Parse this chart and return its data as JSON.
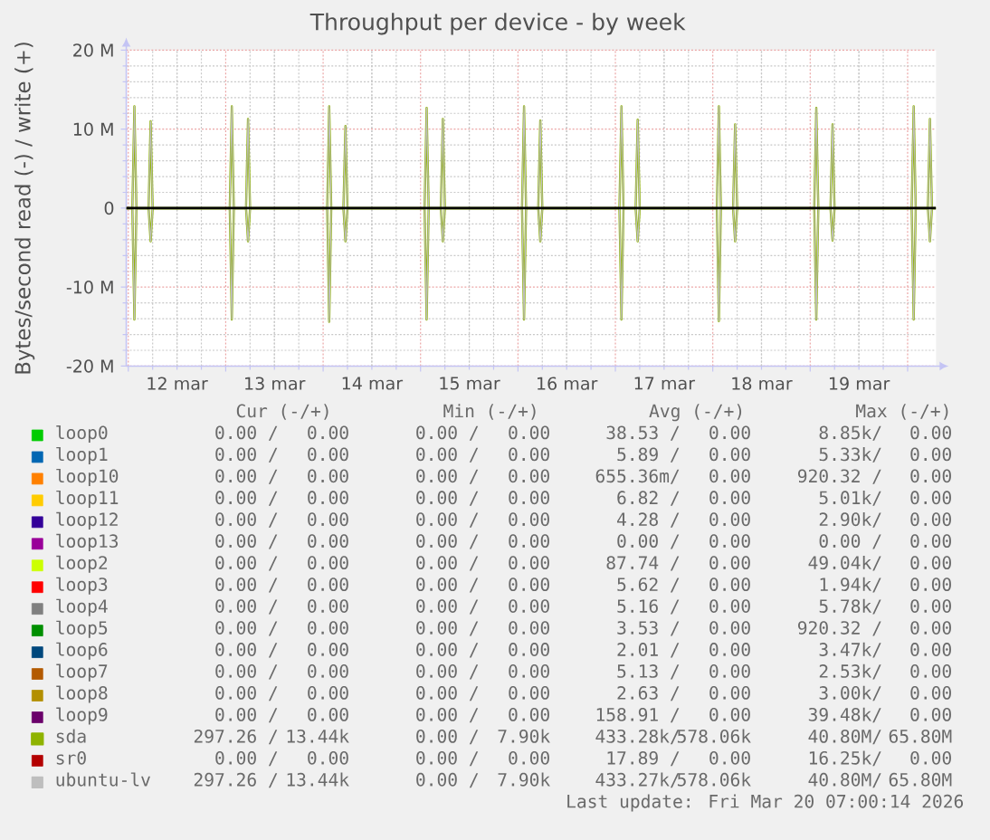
{
  "chart_data": {
    "type": "line",
    "title": "Throughput per device - by week",
    "ylabel": "Bytes/second read (-) / write (+)",
    "xlim": [
      "2026-03-11T23:30",
      "2026-03-20T07:00"
    ],
    "xticks": [
      {
        "value": "2026-03-12T00:00",
        "label": null
      },
      {
        "value": "2026-03-12T12:00",
        "label": "12 mar"
      },
      {
        "value": "2026-03-13T00:00",
        "label": null
      },
      {
        "value": "2026-03-13T12:00",
        "label": "13 mar"
      },
      {
        "value": "2026-03-14T00:00",
        "label": null
      },
      {
        "value": "2026-03-14T12:00",
        "label": "14 mar"
      },
      {
        "value": "2026-03-15T00:00",
        "label": null
      },
      {
        "value": "2026-03-15T12:00",
        "label": "15 mar"
      },
      {
        "value": "2026-03-16T00:00",
        "label": null
      },
      {
        "value": "2026-03-16T12:00",
        "label": "16 mar"
      },
      {
        "value": "2026-03-17T00:00",
        "label": null
      },
      {
        "value": "2026-03-17T12:00",
        "label": "17 mar"
      },
      {
        "value": "2026-03-18T00:00",
        "label": null
      },
      {
        "value": "2026-03-18T12:00",
        "label": "18 mar"
      },
      {
        "value": "2026-03-19T00:00",
        "label": null
      },
      {
        "value": "2026-03-19T12:00",
        "label": "19 mar"
      },
      {
        "value": "2026-03-20T00:00",
        "label": null
      }
    ],
    "ylim": [
      -20,
      20
    ],
    "yticks": [
      {
        "value": -20,
        "label": "-20 M"
      },
      {
        "value": -10,
        "label": "-10 M"
      },
      0,
      {
        "value": 10,
        "label": "10 M"
      },
      {
        "value": 20,
        "label": "20 M"
      }
    ],
    "grid": true,
    "legend": "bottom",
    "series": [
      {
        "name": "loop0",
        "color": "#00cc00",
        "values": [
          null
        ]
      },
      {
        "name": "loop1",
        "color": "#0066b3",
        "values": [
          null
        ]
      },
      {
        "name": "loop10",
        "color": "#ff8000",
        "values": [
          null
        ]
      },
      {
        "name": "loop11",
        "color": "#ffcc00",
        "values": [
          null
        ]
      },
      {
        "name": "loop12",
        "color": "#330099",
        "values": [
          null
        ]
      },
      {
        "name": "loop13",
        "color": "#990099",
        "values": [
          null
        ]
      },
      {
        "name": "loop2",
        "color": "#ccff00",
        "values": [
          null
        ]
      },
      {
        "name": "loop3",
        "color": "#ff0000",
        "values": [
          null
        ]
      },
      {
        "name": "loop4",
        "color": "#808080",
        "values": [
          null
        ]
      },
      {
        "name": "loop5",
        "color": "#008f00",
        "values": [
          null
        ]
      },
      {
        "name": "loop6",
        "color": "#00487d",
        "values": [
          null
        ]
      },
      {
        "name": "loop7",
        "color": "#b35a00",
        "values": [
          null
        ]
      },
      {
        "name": "loop8",
        "color": "#b38f00",
        "values": [
          null
        ]
      },
      {
        "name": "loop9",
        "color": "#6b006b",
        "values": [
          null
        ]
      },
      {
        "name": "sda",
        "color": "#8fb300",
        "x": [
          "2026-03-11T23:30",
          "2026-03-12T01:00",
          "2026-03-12T01:30",
          "2026-03-12T02:00",
          "2026-03-12T05:00",
          "2026-03-12T05:30",
          "2026-03-12T06:00",
          "2026-03-13T01:00",
          "2026-03-13T01:30",
          "2026-03-13T02:00",
          "2026-03-13T05:00",
          "2026-03-13T05:30",
          "2026-03-13T06:00",
          "2026-03-14T01:00",
          "2026-03-14T01:30",
          "2026-03-14T02:00",
          "2026-03-14T05:00",
          "2026-03-14T05:30",
          "2026-03-14T06:00",
          "2026-03-15T01:00",
          "2026-03-15T01:30",
          "2026-03-15T02:00",
          "2026-03-15T05:00",
          "2026-03-15T05:30",
          "2026-03-15T06:00",
          "2026-03-16T01:00",
          "2026-03-16T01:30",
          "2026-03-16T02:00",
          "2026-03-16T05:00",
          "2026-03-16T05:30",
          "2026-03-16T06:00",
          "2026-03-17T01:00",
          "2026-03-17T01:30",
          "2026-03-17T02:00",
          "2026-03-17T05:00",
          "2026-03-17T05:30",
          "2026-03-17T06:00",
          "2026-03-18T01:00",
          "2026-03-18T01:30",
          "2026-03-18T02:00",
          "2026-03-18T05:00",
          "2026-03-18T05:30",
          "2026-03-18T06:00",
          "2026-03-19T01:00",
          "2026-03-19T01:30",
          "2026-03-19T02:00",
          "2026-03-19T05:00",
          "2026-03-19T05:30",
          "2026-03-19T06:00",
          "2026-03-20T01:00",
          "2026-03-20T01:30",
          "2026-03-20T02:00",
          "2026-03-20T05:00",
          "2026-03-20T05:30",
          "2026-03-20T06:00",
          "2026-03-20T07:00"
        ],
        "values": [
          0,
          0,
          12.9,
          0,
          0,
          11.0,
          0,
          0,
          12.9,
          0,
          0,
          11.3,
          0,
          0,
          12.9,
          0,
          0,
          10.4,
          0,
          0,
          12.7,
          0,
          0,
          11.3,
          0,
          0,
          12.9,
          0,
          0,
          11.1,
          0,
          0,
          12.9,
          0,
          0,
          11.2,
          0,
          0,
          12.9,
          0,
          0,
          10.6,
          0,
          0,
          12.7,
          0,
          0,
          10.6,
          0,
          0,
          12.9,
          0,
          0,
          11.3,
          0,
          0
        ]
      },
      {
        "color": "#8fb300",
        "x": [
          "2026-03-11T23:30",
          "2026-03-12T01:00",
          "2026-03-12T01:30",
          "2026-03-12T02:00",
          "2026-03-12T05:00",
          "2026-03-12T05:30",
          "2026-03-12T06:00",
          "2026-03-13T01:00",
          "2026-03-13T01:30",
          "2026-03-13T02:00",
          "2026-03-13T05:00",
          "2026-03-13T05:30",
          "2026-03-13T06:00",
          "2026-03-14T01:00",
          "2026-03-14T01:30",
          "2026-03-14T02:00",
          "2026-03-14T05:00",
          "2026-03-14T05:30",
          "2026-03-14T06:00",
          "2026-03-15T01:00",
          "2026-03-15T01:30",
          "2026-03-15T02:00",
          "2026-03-15T05:00",
          "2026-03-15T05:30",
          "2026-03-15T06:00",
          "2026-03-16T01:00",
          "2026-03-16T01:30",
          "2026-03-16T02:00",
          "2026-03-16T05:00",
          "2026-03-16T05:30",
          "2026-03-16T06:00",
          "2026-03-17T01:00",
          "2026-03-17T01:30",
          "2026-03-17T02:00",
          "2026-03-17T05:00",
          "2026-03-17T05:30",
          "2026-03-17T06:00",
          "2026-03-18T01:00",
          "2026-03-18T01:30",
          "2026-03-18T02:00",
          "2026-03-18T05:00",
          "2026-03-18T05:30",
          "2026-03-18T06:00",
          "2026-03-19T01:00",
          "2026-03-19T01:30",
          "2026-03-19T02:00",
          "2026-03-19T05:00",
          "2026-03-19T05:30",
          "2026-03-19T06:00",
          "2026-03-20T01:00",
          "2026-03-20T01:30",
          "2026-03-20T02:00",
          "2026-03-20T05:00",
          "2026-03-20T05:30",
          "2026-03-20T06:00",
          "2026-03-20T07:00"
        ],
        "values": [
          0,
          0,
          -14.1,
          0,
          0,
          -4.2,
          0,
          0,
          -14.1,
          0,
          0,
          -4.2,
          0,
          0,
          -14.4,
          0,
          0,
          -4.2,
          0,
          0,
          -14.1,
          0,
          0,
          -4.2,
          0,
          0,
          -14.1,
          0,
          0,
          -4.2,
          0,
          0,
          -14.1,
          0,
          0,
          -4.2,
          0,
          0,
          -14.3,
          0,
          0,
          -4.2,
          0,
          0,
          -14.1,
          0,
          0,
          -4.1,
          0,
          0,
          -14.1,
          0,
          0,
          -4.2,
          0,
          0
        ]
      },
      {
        "name": "sr0",
        "color": "#b30000",
        "values": [
          null
        ]
      },
      {
        "name": "ubuntu-lv",
        "color": "#bebebe",
        "x": [
          "2026-03-11T23:30",
          "2026-03-12T01:00",
          "2026-03-12T01:30",
          "2026-03-12T02:00",
          "2026-03-12T05:00",
          "2026-03-12T05:30",
          "2026-03-12T06:00",
          "2026-03-13T01:00",
          "2026-03-13T01:30",
          "2026-03-13T02:00",
          "2026-03-13T05:00",
          "2026-03-13T05:30",
          "2026-03-13T06:00",
          "2026-03-14T01:00",
          "2026-03-14T01:30",
          "2026-03-14T02:00",
          "2026-03-14T05:00",
          "2026-03-14T05:30",
          "2026-03-14T06:00",
          "2026-03-15T01:00",
          "2026-03-15T01:30",
          "2026-03-15T02:00",
          "2026-03-15T05:00",
          "2026-03-15T05:30",
          "2026-03-15T06:00",
          "2026-03-16T01:00",
          "2026-03-16T01:30",
          "2026-03-16T02:00",
          "2026-03-16T05:00",
          "2026-03-16T05:30",
          "2026-03-16T06:00",
          "2026-03-17T01:00",
          "2026-03-17T01:30",
          "2026-03-17T02:00",
          "2026-03-17T05:00",
          "2026-03-17T05:30",
          "2026-03-17T06:00",
          "2026-03-18T01:00",
          "2026-03-18T01:30",
          "2026-03-18T02:00",
          "2026-03-18T05:00",
          "2026-03-18T05:30",
          "2026-03-18T06:00",
          "2026-03-19T01:00",
          "2026-03-19T01:30",
          "2026-03-19T02:00",
          "2026-03-19T05:00",
          "2026-03-19T05:30",
          "2026-03-19T06:00",
          "2026-03-20T01:00",
          "2026-03-20T01:30",
          "2026-03-20T02:00",
          "2026-03-20T05:00",
          "2026-03-20T05:30",
          "2026-03-20T06:00",
          "2026-03-20T07:00"
        ],
        "values": [
          0,
          0,
          12.9,
          0,
          0,
          11.0,
          0,
          0,
          12.9,
          0,
          0,
          11.3,
          0,
          0,
          12.9,
          0,
          0,
          10.4,
          0,
          0,
          12.7,
          0,
          0,
          11.3,
          0,
          0,
          12.9,
          0,
          0,
          11.1,
          0,
          0,
          12.9,
          0,
          0,
          11.2,
          0,
          0,
          12.9,
          0,
          0,
          10.6,
          0,
          0,
          12.7,
          0,
          0,
          10.6,
          0,
          0,
          12.9,
          0,
          0,
          11.3,
          0,
          0
        ]
      },
      {
        "color": "#bebebe",
        "x": [
          "2026-03-11T23:30",
          "2026-03-12T01:00",
          "2026-03-12T01:30",
          "2026-03-12T02:00",
          "2026-03-12T05:00",
          "2026-03-12T05:30",
          "2026-03-12T06:00",
          "2026-03-13T01:00",
          "2026-03-13T01:30",
          "2026-03-13T02:00",
          "2026-03-13T05:00",
          "2026-03-13T05:30",
          "2026-03-13T06:00",
          "2026-03-14T01:00",
          "2026-03-14T01:30",
          "2026-03-14T02:00",
          "2026-03-14T05:00",
          "2026-03-14T05:30",
          "2026-03-14T06:00",
          "2026-03-15T01:00",
          "2026-03-15T01:30",
          "2026-03-15T02:00",
          "2026-03-15T05:00",
          "2026-03-15T05:30",
          "2026-03-15T06:00",
          "2026-03-16T01:00",
          "2026-03-16T01:30",
          "2026-03-16T02:00",
          "2026-03-16T05:00",
          "2026-03-16T05:30",
          "2026-03-16T06:00",
          "2026-03-17T01:00",
          "2026-03-17T01:30",
          "2026-03-17T02:00",
          "2026-03-17T05:00",
          "2026-03-17T05:30",
          "2026-03-17T06:00",
          "2026-03-18T01:00",
          "2026-03-18T01:30",
          "2026-03-18T02:00",
          "2026-03-18T05:00",
          "2026-03-18T05:30",
          "2026-03-18T06:00",
          "2026-03-19T01:00",
          "2026-03-19T01:30",
          "2026-03-19T02:00",
          "2026-03-19T05:00",
          "2026-03-19T05:30",
          "2026-03-19T06:00",
          "2026-03-20T01:00",
          "2026-03-20T01:30",
          "2026-03-20T02:00",
          "2026-03-20T05:00",
          "2026-03-20T05:30",
          "2026-03-20T06:00",
          "2026-03-20T07:00"
        ],
        "values": [
          0,
          0,
          -14.1,
          0,
          0,
          -4.2,
          0,
          0,
          -14.1,
          0,
          0,
          -4.2,
          0,
          0,
          -14.4,
          0,
          0,
          -4.2,
          0,
          0,
          -14.1,
          0,
          0,
          -4.2,
          0,
          0,
          -14.1,
          0,
          0,
          -4.2,
          0,
          0,
          -14.1,
          0,
          0,
          -4.2,
          0,
          0,
          -14.3,
          0,
          0,
          -4.2,
          0,
          0,
          -14.1,
          0,
          0,
          -4.1,
          0,
          0,
          -14.1,
          0,
          0,
          -4.2,
          0,
          0
        ]
      }
    ],
    "ref_lines": [
      {
        "axis": "y",
        "value": 0,
        "color": "#000000"
      }
    ],
    "annotations": [
      "Cur (-/+)",
      "Min (-/+)",
      "Avg (-/+)",
      "Max (-/+)",
      "0.00 /",
      "0.00",
      "0.00 /",
      "0.00",
      "38.53 /",
      "0.00",
      "8.85k/",
      "0.00",
      "0.00 /",
      "0.00",
      "0.00 /",
      "0.00",
      "5.89 /",
      "0.00",
      "5.33k/",
      "0.00",
      "0.00 /",
      "0.00",
      "0.00 /",
      "0.00",
      "655.36m/",
      "0.00",
      "920.32 /",
      "0.00",
      "0.00 /",
      "0.00",
      "0.00 /",
      "0.00",
      "6.82 /",
      "0.00",
      "5.01k/",
      "0.00",
      "0.00 /",
      "0.00",
      "0.00 /",
      "0.00",
      "4.28 /",
      "0.00",
      "2.90k/",
      "0.00",
      "0.00 /",
      "0.00",
      "0.00 /",
      "0.00",
      "0.00 /",
      "0.00",
      "0.00 /",
      "0.00",
      "0.00 /",
      "0.00",
      "0.00 /",
      "0.00",
      "87.74 /",
      "0.00",
      "49.04k/",
      "0.00",
      "0.00 /",
      "0.00",
      "0.00 /",
      "0.00",
      "5.62 /",
      "0.00",
      "1.94k/",
      "0.00",
      "0.00 /",
      "0.00",
      "0.00 /",
      "0.00",
      "5.16 /",
      "0.00",
      "5.78k/",
      "0.00",
      "0.00 /",
      "0.00",
      "0.00 /",
      "0.00",
      "3.53 /",
      "0.00",
      "920.32 /",
      "0.00",
      "0.00 /",
      "0.00",
      "0.00 /",
      "0.00",
      "2.01 /",
      "0.00",
      "3.47k/",
      "0.00",
      "0.00 /",
      "0.00",
      "0.00 /",
      "0.00",
      "5.13 /",
      "0.00",
      "2.53k/",
      "0.00",
      "0.00 /",
      "0.00",
      "0.00 /",
      "0.00",
      "2.63 /",
      "0.00",
      "3.00k/",
      "0.00",
      "0.00 /",
      "0.00",
      "0.00 /",
      "0.00",
      "158.91 /",
      "0.00",
      "39.48k/",
      "0.00",
      "297.26 /",
      "13.44k",
      "0.00 /",
      "7.90k",
      "433.28k/",
      "578.06k",
      "40.80M/",
      "65.80M",
      "0.00 /",
      "0.00",
      "0.00 /",
      "0.00",
      "17.89 /",
      "0.00",
      "16.25k/",
      "0.00",
      "297.26 /",
      "13.44k",
      "0.00 /",
      "7.90k",
      "433.27k/",
      "578.06k",
      "40.80M/",
      "65.80M",
      "Last update: Fri Mar 20 07:00:14 2026"
    ]
  }
}
